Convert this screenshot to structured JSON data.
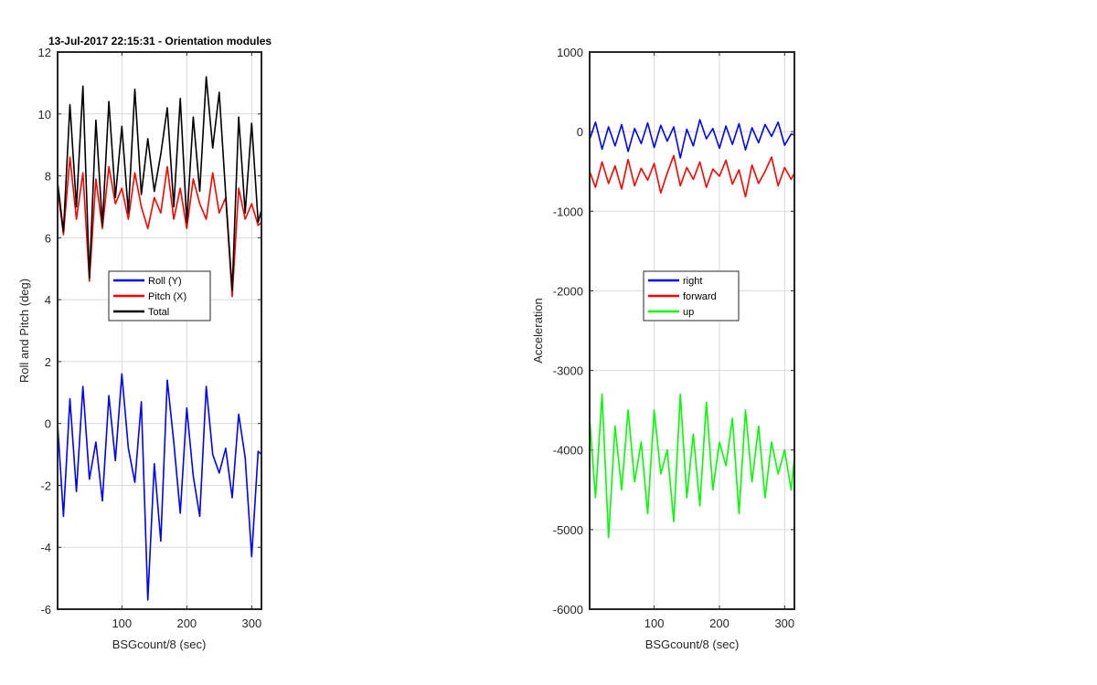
{
  "chart_data": [
    {
      "type": "line",
      "title": "13-Jul-2017 22:15:31 - Orientation modules",
      "xlabel": "BSGcount/8 (sec)",
      "ylabel": "Roll and Pitch (deg)",
      "xlim": [
        1,
        315
      ],
      "ylim": [
        -6,
        12
      ],
      "xticks": [
        100,
        200,
        300
      ],
      "yticks": [
        -6,
        -4,
        -2,
        0,
        2,
        4,
        6,
        8,
        10,
        12
      ],
      "grid": true,
      "legend_position": "center",
      "series": [
        {
          "name": "Roll (Y)",
          "color": "#0000ff",
          "x": [
            1,
            10,
            20,
            30,
            40,
            50,
            60,
            70,
            80,
            90,
            100,
            110,
            120,
            130,
            140,
            150,
            160,
            170,
            180,
            190,
            200,
            210,
            220,
            230,
            240,
            250,
            260,
            270,
            280,
            290,
            300,
            310,
            315
          ],
          "y": [
            0.0,
            -3.0,
            0.8,
            -2.2,
            1.2,
            -1.8,
            -0.6,
            -2.5,
            0.9,
            -1.2,
            1.6,
            -0.8,
            -1.9,
            0.7,
            -5.7,
            -1.3,
            -3.8,
            1.4,
            -0.6,
            -2.9,
            0.5,
            -1.7,
            -3.0,
            1.2,
            -1.0,
            -1.6,
            -0.8,
            -2.4,
            0.3,
            -1.1,
            -4.3,
            -0.9,
            -1.0
          ]
        },
        {
          "name": "Pitch (X)",
          "color": "#ff0000",
          "x": [
            1,
            10,
            20,
            30,
            40,
            50,
            60,
            70,
            80,
            90,
            100,
            110,
            120,
            130,
            140,
            150,
            160,
            170,
            180,
            190,
            200,
            210,
            220,
            230,
            240,
            250,
            260,
            270,
            280,
            290,
            300,
            310,
            315
          ],
          "y": [
            7.6,
            6.1,
            8.6,
            6.6,
            8.1,
            4.6,
            7.9,
            6.3,
            8.3,
            7.1,
            7.6,
            6.6,
            8.1,
            7.0,
            6.3,
            7.3,
            6.8,
            8.3,
            6.6,
            7.6,
            6.3,
            7.9,
            7.1,
            6.6,
            8.1,
            6.8,
            7.3,
            4.1,
            7.6,
            6.6,
            7.1,
            6.4,
            6.5
          ]
        },
        {
          "name": "Total",
          "color": "#000000",
          "x": [
            1,
            10,
            20,
            30,
            40,
            50,
            60,
            70,
            80,
            90,
            100,
            110,
            120,
            130,
            140,
            150,
            160,
            170,
            180,
            190,
            200,
            210,
            220,
            230,
            240,
            250,
            260,
            270,
            280,
            290,
            300,
            310,
            315
          ],
          "y": [
            7.8,
            6.2,
            10.3,
            7.0,
            10.9,
            4.7,
            9.8,
            6.4,
            10.4,
            7.3,
            9.6,
            6.8,
            10.8,
            7.4,
            9.2,
            7.5,
            8.7,
            10.2,
            7.0,
            10.5,
            6.5,
            9.9,
            7.5,
            11.2,
            8.9,
            10.7,
            7.4,
            4.3,
            9.9,
            6.8,
            9.7,
            6.5,
            6.9
          ]
        }
      ]
    },
    {
      "type": "line",
      "title": "",
      "xlabel": "BSGcount/8 (sec)",
      "ylabel": "Acceleration",
      "xlim": [
        1,
        315
      ],
      "ylim": [
        -6000,
        1000
      ],
      "xticks": [
        100,
        200,
        300
      ],
      "yticks": [
        -6000,
        -5000,
        -4000,
        -3000,
        -2000,
        -1000,
        0,
        1000
      ],
      "grid": true,
      "legend_position": "center",
      "series": [
        {
          "name": "right",
          "color": "#0000ff",
          "x": [
            1,
            10,
            20,
            30,
            40,
            50,
            60,
            70,
            80,
            90,
            100,
            110,
            120,
            130,
            140,
            150,
            160,
            170,
            180,
            190,
            200,
            210,
            220,
            230,
            240,
            250,
            260,
            270,
            280,
            290,
            300,
            310,
            315
          ],
          "y": [
            -100,
            120,
            -220,
            60,
            -180,
            90,
            -250,
            40,
            -150,
            110,
            -200,
            80,
            -120,
            60,
            -330,
            30,
            -180,
            150,
            -90,
            40,
            -210,
            70,
            -160,
            100,
            -230,
            50,
            -140,
            90,
            -60,
            120,
            -170,
            -30,
            -40
          ]
        },
        {
          "name": "forward",
          "color": "#ff0000",
          "x": [
            1,
            10,
            20,
            30,
            40,
            50,
            60,
            70,
            80,
            90,
            100,
            110,
            120,
            130,
            140,
            150,
            160,
            170,
            180,
            190,
            200,
            210,
            220,
            230,
            240,
            250,
            260,
            270,
            280,
            290,
            300,
            310,
            315
          ],
          "y": [
            -500,
            -700,
            -380,
            -650,
            -430,
            -720,
            -350,
            -680,
            -460,
            -610,
            -400,
            -770,
            -520,
            -300,
            -680,
            -450,
            -600,
            -380,
            -700,
            -470,
            -560,
            -360,
            -660,
            -480,
            -820,
            -420,
            -650,
            -500,
            -320,
            -680,
            -450,
            -600,
            -520
          ]
        },
        {
          "name": "up",
          "color": "#00ff00",
          "x": [
            1,
            10,
            20,
            30,
            40,
            50,
            60,
            70,
            80,
            90,
            100,
            110,
            120,
            130,
            140,
            150,
            160,
            170,
            180,
            190,
            200,
            210,
            220,
            230,
            240,
            250,
            260,
            270,
            280,
            290,
            300,
            310,
            315
          ],
          "y": [
            -3600,
            -4600,
            -3300,
            -5100,
            -3700,
            -4500,
            -3500,
            -4400,
            -3900,
            -4800,
            -3500,
            -4300,
            -4000,
            -4900,
            -3300,
            -4600,
            -3800,
            -4700,
            -3400,
            -4500,
            -3900,
            -4200,
            -3600,
            -4800,
            -3500,
            -4400,
            -3700,
            -4600,
            -3900,
            -4300,
            -4000,
            -4500,
            -4100
          ]
        }
      ]
    }
  ]
}
